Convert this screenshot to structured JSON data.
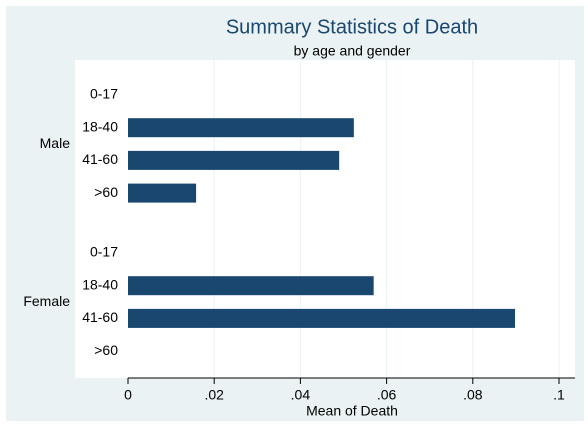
{
  "chart_data": {
    "type": "bar",
    "title": "Summary Statistics of Death",
    "subtitle": "by age and gender",
    "xlabel": "Mean of Death",
    "color": "#1a476f",
    "grid": true,
    "groups": [
      {
        "name": "Male",
        "categories": [
          "0-17",
          "18-40",
          "41-60",
          ">60"
        ],
        "values": [
          0,
          0.0524,
          0.049,
          0.0158
        ]
      },
      {
        "name": "Female",
        "categories": [
          "0-17",
          "18-40",
          "41-60",
          ">60"
        ],
        "values": [
          0,
          0.057,
          0.0898,
          0
        ]
      }
    ],
    "xlim": [
      0,
      0.1
    ],
    "xticks": [
      0,
      {
        "value": 0.02,
        "label": ".02"
      },
      {
        "value": 0.04,
        "label": ".04"
      },
      {
        "value": 0.06,
        "label": ".06"
      },
      {
        "value": 0.08,
        "label": ".08"
      },
      {
        "value": 0.1,
        "label": ".1"
      }
    ]
  }
}
